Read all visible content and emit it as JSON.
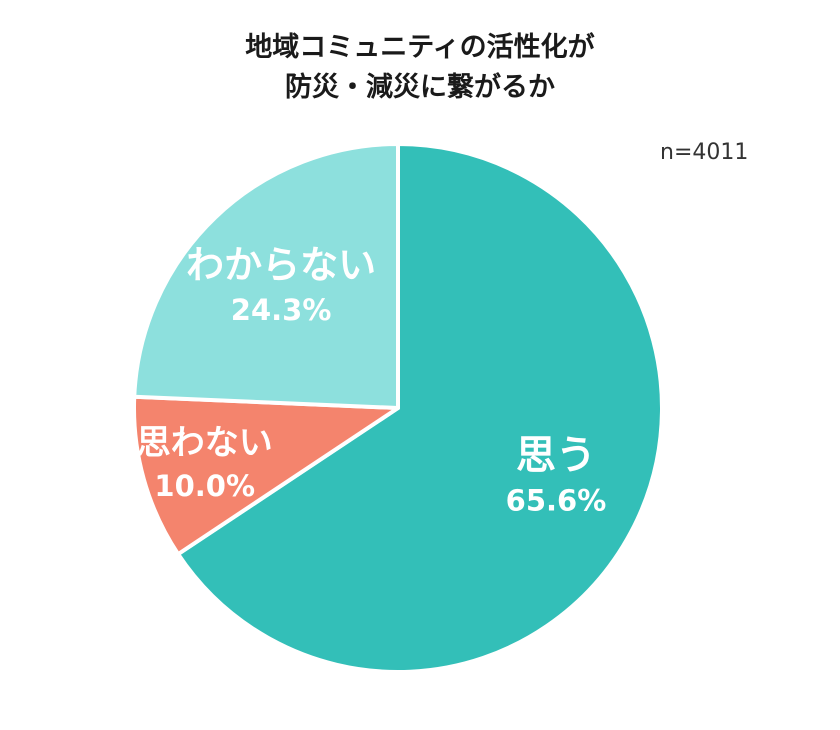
{
  "title_lines": [
    "地域コミュニティの活性化が",
    "防災・減災に繋がるか"
  ],
  "sample_size": "n=4011",
  "chart_data": {
    "type": "pie",
    "title": "地域コミュニティの活性化が防災・減災に繋がるか",
    "slices": [
      {
        "label": "思う",
        "value": 65.6,
        "value_label": "65.6%",
        "color": "#33bfb8"
      },
      {
        "label": "思わない",
        "value": 10.0,
        "value_label": "10.0%",
        "color": "#f4846d"
      },
      {
        "label": "わからない",
        "value": 24.3,
        "value_label": "24.3%",
        "color": "#8de0dd"
      }
    ],
    "start": "top",
    "direction": "clockwise"
  }
}
